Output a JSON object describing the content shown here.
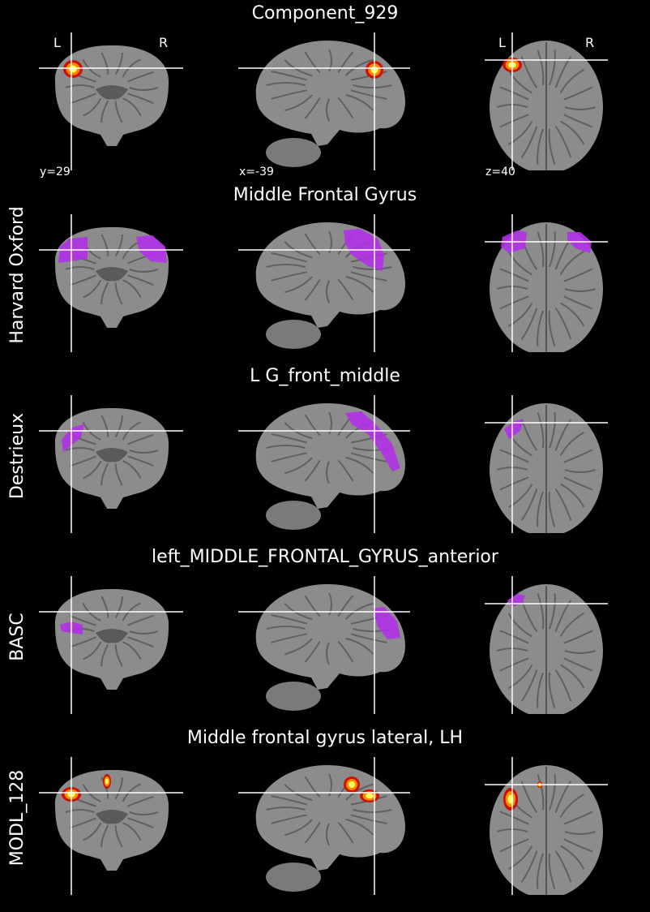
{
  "rows": [
    {
      "title": "Component_929",
      "atlas": "",
      "overlay": "heat",
      "coords": {
        "coronal": "y=29",
        "sagittal": "x=-39",
        "axial": "z=40"
      },
      "orientation": {
        "left": "L",
        "right": "R"
      }
    },
    {
      "title": "Middle Frontal Gyrus",
      "atlas": "Harvard Oxford",
      "overlay": "purple"
    },
    {
      "title": "L G_front_middle",
      "atlas": "Destrieux",
      "overlay": "purple"
    },
    {
      "title": "left_MIDDLE_FRONTAL_GYRUS_anterior",
      "atlas": "BASC",
      "overlay": "purple"
    },
    {
      "title": "Middle frontal gyrus lateral, LH",
      "atlas": "MODL_128",
      "overlay": "heat"
    }
  ],
  "colors": {
    "background": "#000000",
    "brain_gray": "#8c8c8c",
    "crosshair": "#ffffff",
    "atlas_region": "#b030e8",
    "heat_core": "#ffff60",
    "heat_mid": "#ff8800",
    "heat_edge": "#cc1100"
  }
}
